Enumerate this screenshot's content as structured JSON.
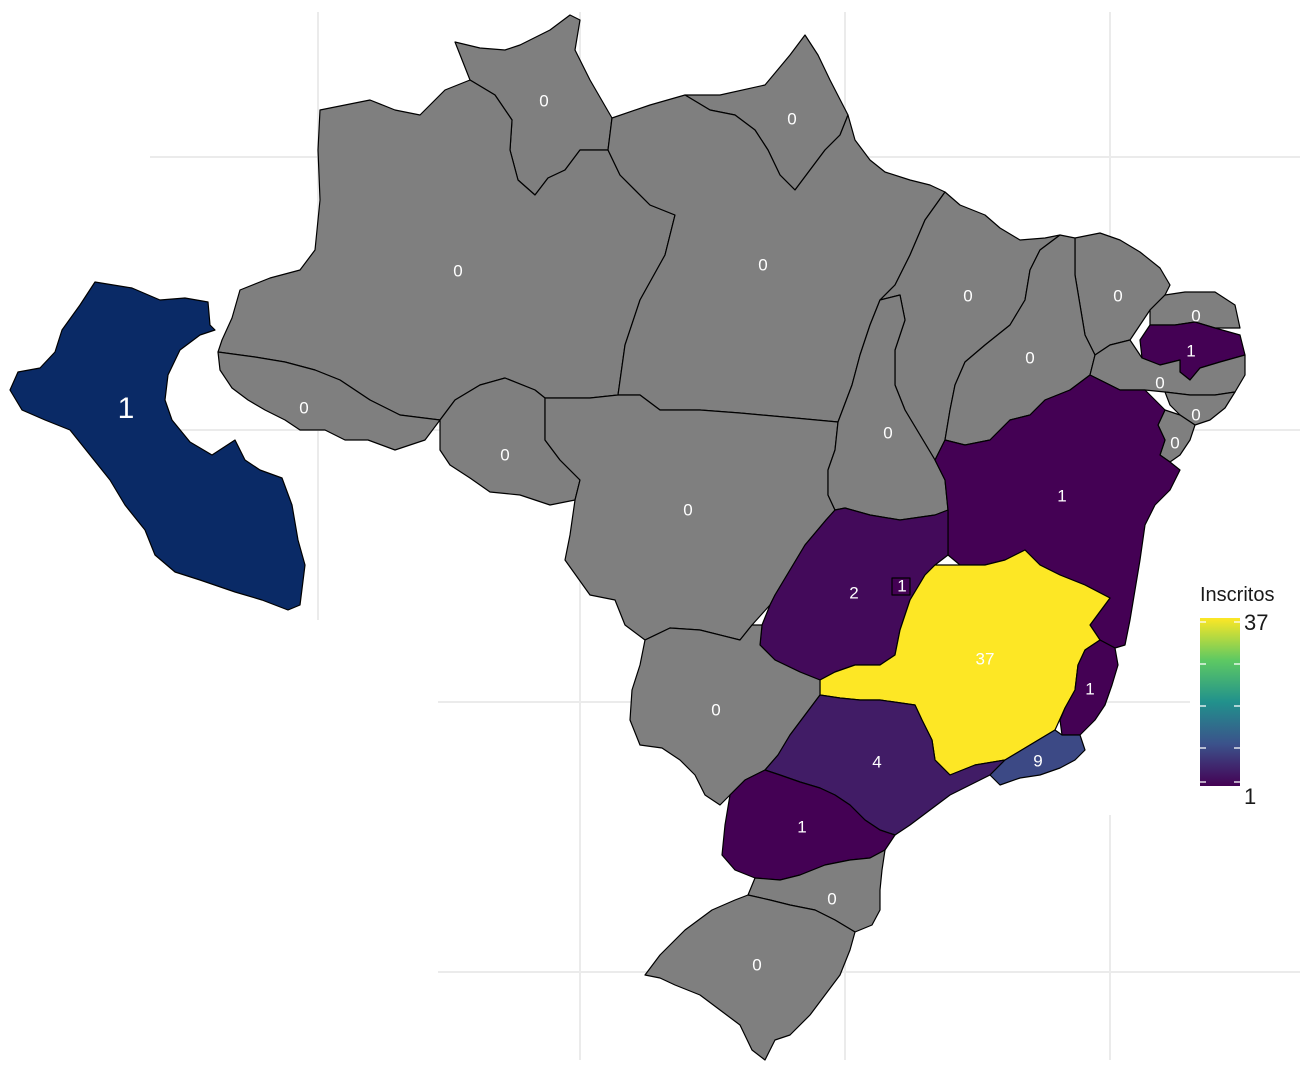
{
  "legend": {
    "title": "Inscritos",
    "min_label": "1",
    "max_label": "37",
    "color_scale": "viridis",
    "colors": [
      "#440154",
      "#3b528b",
      "#21918c",
      "#5ec962",
      "#fde725"
    ]
  },
  "colors": {
    "background": "#ffffff",
    "no_data_fill": "#7f7f7f",
    "peru_fill": "#0a2a66",
    "label_text": "#ffffff",
    "gridline": "#ebebeb"
  },
  "regions": [
    {
      "name": "Roraima",
      "value": "0"
    },
    {
      "name": "Amapá",
      "value": "0"
    },
    {
      "name": "Amazonas",
      "value": "0"
    },
    {
      "name": "Pará",
      "value": "0"
    },
    {
      "name": "Acre",
      "value": "0"
    },
    {
      "name": "Rondônia",
      "value": "0"
    },
    {
      "name": "Mato Grosso",
      "value": "0"
    },
    {
      "name": "Maranhão",
      "value": "0"
    },
    {
      "name": "Ceará",
      "value": "0"
    },
    {
      "name": "Rio Grande do Norte",
      "value": "0"
    },
    {
      "name": "Paraíba",
      "value": "1"
    },
    {
      "name": "Piauí",
      "value": "0"
    },
    {
      "name": "Pernambuco",
      "value": "0"
    },
    {
      "name": "Alagoas",
      "value": "0"
    },
    {
      "name": "Sergipe",
      "value": "0"
    },
    {
      "name": "Tocantins",
      "value": "0"
    },
    {
      "name": "Bahia",
      "value": "1"
    },
    {
      "name": "Goiás",
      "value": "2"
    },
    {
      "name": "Distrito Federal",
      "value": "1"
    },
    {
      "name": "Minas Gerais",
      "value": "37"
    },
    {
      "name": "Espírito Santo",
      "value": "1"
    },
    {
      "name": "Mato Grosso do Sul",
      "value": "0"
    },
    {
      "name": "São Paulo",
      "value": "4"
    },
    {
      "name": "Rio de Janeiro",
      "value": "9"
    },
    {
      "name": "Paraná",
      "value": "1"
    },
    {
      "name": "Santa Catarina",
      "value": "0"
    },
    {
      "name": "Rio Grande do Sul",
      "value": "0"
    }
  ],
  "peru": {
    "name": "Peru",
    "value": "1"
  }
}
